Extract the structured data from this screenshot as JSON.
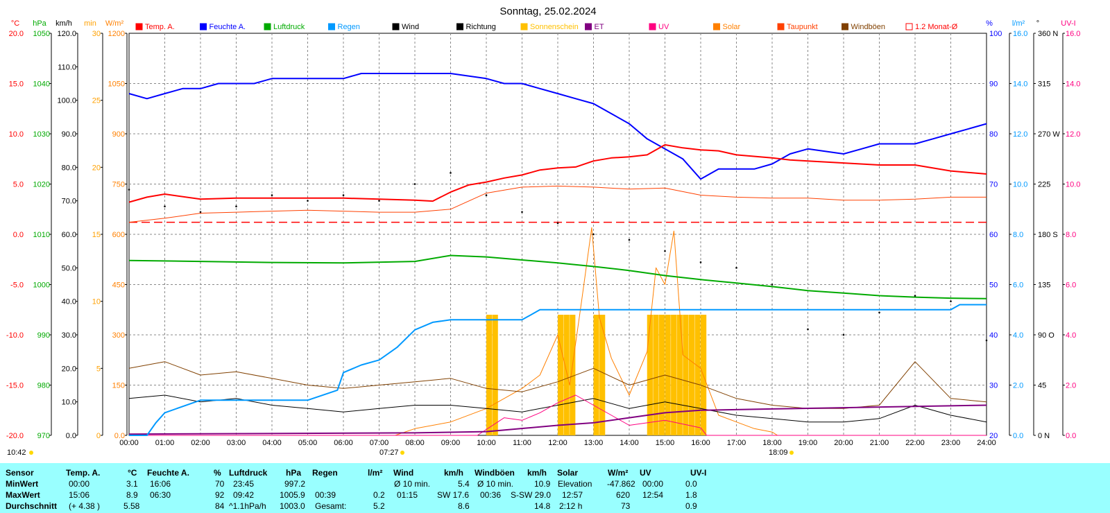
{
  "title": "Sonntag, 25.02.2024",
  "colors": {
    "temp": "#ff0000",
    "humidity": "#0000ff",
    "pressure": "#00aa00",
    "rain": "#0099ff",
    "wind": "#000000",
    "solar": "#ff8000",
    "dewpoint": "#ff4000",
    "gust": "#804000",
    "uv": "#ff0080",
    "et": "#800080",
    "sunshine": "#ffc000",
    "stats_bg": "#99ffff"
  },
  "legend": [
    {
      "label": "Temp. A.",
      "color": "#ff0000"
    },
    {
      "label": "Feuchte A.",
      "color": "#0000ff"
    },
    {
      "label": "Luftdruck",
      "color": "#00aa00"
    },
    {
      "label": "Regen",
      "color": "#0099ff"
    },
    {
      "label": "Wind",
      "color": "#000000"
    },
    {
      "label": "Richtung",
      "color": "#000000"
    },
    {
      "label": "Sonnenschein",
      "color": "#ffc000"
    },
    {
      "label": "ET",
      "color": "#800080"
    },
    {
      "label": "UV",
      "color": "#ff0080"
    },
    {
      "label": "Solar",
      "color": "#ff8000"
    },
    {
      "label": "Taupunkt",
      "color": "#ff4000"
    },
    {
      "label": "Windböen",
      "color": "#804000"
    },
    {
      "label": "1.2 Monat-Ø",
      "color": "#ff0000",
      "outline": true
    }
  ],
  "axes": {
    "temp": {
      "unit": "°C",
      "color": "#ff0000",
      "ticks": [
        "20.0",
        "15.0",
        "10.0",
        "5.0",
        "0.0",
        "-5.0",
        "-10.0",
        "-15.0",
        "-20.0"
      ]
    },
    "hpa": {
      "unit": "hPa",
      "color": "#00aa00",
      "ticks": [
        "1050",
        "1040",
        "1030",
        "1020",
        "1010",
        "1000",
        "990",
        "980",
        "970"
      ]
    },
    "kmh": {
      "unit": "km/h",
      "color": "#000000",
      "ticks": [
        "120.0",
        "110.0",
        "100.0",
        "90.0",
        "80.0",
        "70.0",
        "60.0",
        "50.0",
        "40.0",
        "30.0",
        "20.0",
        "10.0",
        "0.0"
      ]
    },
    "min": {
      "unit": "min",
      "color": "#ffa000",
      "ticks": [
        "30",
        "25",
        "20",
        "15",
        "10",
        "5",
        "0"
      ]
    },
    "wm2": {
      "unit": "W/m²",
      "color": "#ff8000",
      "ticks": [
        "1200",
        "1050",
        "900",
        "750",
        "600",
        "450",
        "300",
        "150",
        "0.0"
      ]
    },
    "pct": {
      "unit": "%",
      "color": "#0000ff",
      "ticks": [
        "100",
        "90",
        "80",
        "70",
        "60",
        "50",
        "40",
        "30",
        "20"
      ]
    },
    "lm2": {
      "unit": "l/m²",
      "color": "#0099ff",
      "ticks": [
        "16.0",
        "14.0",
        "12.0",
        "10.0",
        "8.0",
        "6.0",
        "4.0",
        "2.0",
        "0.0"
      ]
    },
    "deg": {
      "unit": "°",
      "color": "#000000",
      "ticks": [
        "360 N",
        "315",
        "270 W",
        "225",
        "180 S",
        "135",
        "90  O",
        "45",
        "0   N"
      ]
    },
    "uvi": {
      "unit": "UV-I",
      "color": "#ff0080",
      "ticks": [
        "16.0",
        "14.0",
        "12.0",
        "10.0",
        "8.0",
        "6.0",
        "4.0",
        "2.0",
        "0.0"
      ]
    },
    "x": {
      "ticks": [
        "00:00",
        "01:00",
        "02:00",
        "03:00",
        "04:00",
        "05:00",
        "06:00",
        "07:00",
        "08:00",
        "09:00",
        "10:00",
        "11:00",
        "12:00",
        "13:00",
        "14:00",
        "15:00",
        "16:00",
        "17:00",
        "18:00",
        "19:00",
        "20:00",
        "21:00",
        "22:00",
        "23:00",
        "24:00"
      ]
    }
  },
  "markers": {
    "sunrise": "07:27",
    "sunset": "18:09",
    "daylength": "10:42"
  },
  "chart_data": {
    "type": "line",
    "title": "Sonntag, 25.02.2024",
    "x_range": [
      "00:00",
      "24:00"
    ],
    "series": [
      {
        "name": "Temp. A.",
        "unit": "°C",
        "x": [
          "00:00",
          "00:30",
          "01:00",
          "02:00",
          "03:00",
          "04:00",
          "05:00",
          "06:00",
          "07:00",
          "08:00",
          "08:30",
          "09:00",
          "09:30",
          "10:00",
          "10:30",
          "11:00",
          "11:30",
          "12:00",
          "12:30",
          "13:00",
          "13:30",
          "14:00",
          "14:30",
          "15:00",
          "15:30",
          "16:00",
          "16:30",
          "17:00",
          "18:00",
          "18:30",
          "19:00",
          "20:00",
          "21:00",
          "22:00",
          "23:00",
          "24:00"
        ],
        "values": [
          3.2,
          3.7,
          4.0,
          3.5,
          3.6,
          3.6,
          3.6,
          3.6,
          3.5,
          3.4,
          3.3,
          4.2,
          4.9,
          5.2,
          5.6,
          5.9,
          6.4,
          6.6,
          6.7,
          7.3,
          7.6,
          7.7,
          7.9,
          8.9,
          8.6,
          8.4,
          8.3,
          7.9,
          7.6,
          7.4,
          7.3,
          7.1,
          6.9,
          6.9,
          6.3,
          6.0
        ]
      },
      {
        "name": "Feuchte A.",
        "unit": "%",
        "x": [
          "00:00",
          "00:30",
          "01:00",
          "01:30",
          "02:00",
          "02:30",
          "03:00",
          "03:30",
          "04:00",
          "05:00",
          "06:00",
          "06:30",
          "07:00",
          "08:00",
          "09:00",
          "10:00",
          "10:30",
          "11:00",
          "11:30",
          "12:00",
          "12:30",
          "13:00",
          "13:30",
          "14:00",
          "14:30",
          "15:00",
          "15:30",
          "16:00",
          "16:30",
          "17:00",
          "17:30",
          "18:00",
          "18:30",
          "19:00",
          "20:00",
          "20:30",
          "21:00",
          "21:30",
          "22:00",
          "22:30",
          "23:00",
          "23:30",
          "24:00"
        ],
        "values": [
          88,
          87,
          88,
          89,
          89,
          90,
          90,
          90,
          91,
          91,
          91,
          92,
          92,
          92,
          92,
          91,
          90,
          90,
          89,
          88,
          87,
          86,
          84,
          82,
          79,
          77,
          75,
          71,
          73,
          73,
          73,
          74,
          76,
          77,
          76,
          77,
          78,
          78,
          78,
          79,
          80,
          81,
          82
        ]
      },
      {
        "name": "Luftdruck",
        "unit": "hPa",
        "x": [
          "00:00",
          "02:00",
          "04:00",
          "06:00",
          "08:00",
          "09:00",
          "10:00",
          "11:00",
          "12:00",
          "13:00",
          "14:00",
          "15:00",
          "16:00",
          "17:00",
          "18:00",
          "19:00",
          "20:00",
          "21:00",
          "22:00",
          "23:00",
          "24:00"
        ],
        "values": [
          1004.8,
          1004.6,
          1004.4,
          1004.3,
          1004.6,
          1005.8,
          1005.5,
          1004.9,
          1004.3,
          1003.6,
          1002.8,
          1001.8,
          1001.0,
          1000.3,
          999.6,
          998.8,
          998.3,
          997.8,
          997.5,
          997.3,
          997.2
        ]
      },
      {
        "name": "Regen",
        "unit": "l/m²",
        "x": [
          "00:00",
          "00:30",
          "00:45",
          "01:00",
          "02:00",
          "03:00",
          "04:00",
          "05:00",
          "05:50",
          "06:00",
          "06:30",
          "07:00",
          "07:30",
          "08:00",
          "08:30",
          "09:00",
          "10:00",
          "11:00",
          "11:30",
          "12:00",
          "13:00",
          "14:00",
          "15:00",
          "16:00",
          "17:00",
          "18:00",
          "19:00",
          "20:00",
          "21:00",
          "22:00",
          "23:00",
          "23:15",
          "24:00"
        ],
        "values": [
          0.0,
          0.0,
          0.5,
          0.9,
          1.4,
          1.4,
          1.4,
          1.4,
          1.8,
          2.5,
          2.8,
          3.0,
          3.5,
          4.2,
          4.5,
          4.6,
          4.6,
          4.6,
          5.0,
          5.0,
          5.0,
          5.0,
          5.0,
          5.0,
          5.0,
          5.0,
          5.0,
          5.0,
          5.0,
          5.0,
          5.0,
          5.2,
          5.2
        ]
      },
      {
        "name": "Taupunkt",
        "unit": "°C",
        "x": [
          "00:00",
          "01:00",
          "02:00",
          "03:00",
          "04:00",
          "05:00",
          "06:00",
          "07:00",
          "08:00",
          "09:00",
          "10:00",
          "11:00",
          "12:00",
          "13:00",
          "14:00",
          "15:00",
          "16:00",
          "17:00",
          "18:00",
          "19:00",
          "20:00",
          "21:00",
          "22:00",
          "23:00",
          "24:00"
        ],
        "values": [
          1.2,
          1.6,
          2.1,
          2.2,
          2.3,
          2.4,
          2.3,
          2.2,
          2.2,
          2.5,
          4.1,
          4.7,
          4.8,
          4.7,
          4.5,
          4.6,
          3.9,
          3.7,
          3.6,
          3.6,
          3.4,
          3.4,
          3.5,
          3.7,
          3.7
        ]
      },
      {
        "name": "1.2 Monat-Ø",
        "unit": "°C",
        "x": [
          "00:00",
          "24:00"
        ],
        "values": [
          1.2,
          1.2
        ]
      },
      {
        "name": "Solar",
        "unit": "W/m²",
        "x": [
          "00:00",
          "07:27",
          "08:00",
          "09:00",
          "10:00",
          "11:00",
          "11:30",
          "12:00",
          "12:20",
          "12:40",
          "12:57",
          "13:10",
          "13:30",
          "14:00",
          "14:30",
          "14:45",
          "15:00",
          "15:15",
          "15:30",
          "16:00",
          "16:30",
          "17:00",
          "17:30",
          "18:00",
          "18:09",
          "24:00"
        ],
        "values": [
          0,
          0,
          20,
          40,
          80,
          140,
          180,
          300,
          150,
          400,
          620,
          350,
          230,
          120,
          250,
          500,
          450,
          610,
          240,
          200,
          60,
          40,
          20,
          10,
          0,
          0
        ]
      },
      {
        "name": "Wind",
        "unit": "km/h",
        "x": [
          "00:00",
          "01:00",
          "02:00",
          "03:00",
          "04:00",
          "05:00",
          "06:00",
          "07:00",
          "08:00",
          "09:00",
          "10:00",
          "11:00",
          "12:00",
          "13:00",
          "14:00",
          "15:00",
          "16:00",
          "17:00",
          "18:00",
          "19:00",
          "20:00",
          "21:00",
          "22:00",
          "23:00",
          "24:00"
        ],
        "values": [
          11,
          12,
          10,
          11,
          9,
          8,
          7,
          8,
          9,
          9,
          8,
          7,
          9,
          11,
          8,
          10,
          8,
          6,
          5,
          4,
          4,
          5,
          9,
          6,
          4
        ]
      },
      {
        "name": "Windböen",
        "unit": "km/h",
        "x": [
          "00:00",
          "01:00",
          "02:00",
          "03:00",
          "04:00",
          "05:00",
          "06:00",
          "07:00",
          "08:00",
          "09:00",
          "10:00",
          "11:00",
          "12:00",
          "13:00",
          "14:00",
          "15:00",
          "16:00",
          "17:00",
          "18:00",
          "19:00",
          "20:00",
          "21:00",
          "22:00",
          "23:00",
          "24:00"
        ],
        "values": [
          20,
          22,
          18,
          19,
          17,
          15,
          14,
          15,
          16,
          17,
          14,
          13,
          16,
          20,
          15,
          18,
          15,
          11,
          9,
          8,
          8,
          9,
          22,
          11,
          10
        ]
      },
      {
        "name": "UV",
        "unit": "UV-I",
        "x": [
          "00:00",
          "09:45",
          "10:30",
          "11:00",
          "11:30",
          "12:00",
          "12:30",
          "13:00",
          "13:30",
          "14:00",
          "15:00",
          "16:00",
          "16:10",
          "24:00"
        ],
        "values": [
          0,
          0,
          0.7,
          0.6,
          0.9,
          1.3,
          1.6,
          1.2,
          0.8,
          0.4,
          0.6,
          0.3,
          0,
          0
        ]
      },
      {
        "name": "ET",
        "unit": "l/m²",
        "x": [
          "00:00",
          "08:00",
          "10:00",
          "12:00",
          "13:00",
          "14:00",
          "15:00",
          "16:00",
          "18:00",
          "20:00",
          "22:00",
          "24:00"
        ],
        "values": [
          0.05,
          0.1,
          0.15,
          0.4,
          0.5,
          0.7,
          0.9,
          1.0,
          1.05,
          1.1,
          1.15,
          1.2
        ]
      },
      {
        "name": "Richtung",
        "unit": "°",
        "x": [
          "00:00",
          "01:00",
          "02:00",
          "03:00",
          "04:00",
          "05:00",
          "06:00",
          "07:00",
          "08:00",
          "09:00",
          "10:00",
          "11:00",
          "12:00",
          "13:00",
          "14:00",
          "15:00",
          "16:00",
          "17:00",
          "18:00",
          "19:00",
          "20:00",
          "21:00",
          "22:00",
          "23:00",
          "24:00"
        ],
        "values": [
          220,
          205,
          200,
          205,
          215,
          210,
          215,
          210,
          225,
          235,
          215,
          200,
          190,
          180,
          175,
          165,
          155,
          150,
          135,
          95,
          90,
          110,
          125,
          120,
          85
        ]
      },
      {
        "name": "Sonnenschein",
        "unit": "min",
        "x": [
          "10:00",
          "10:10",
          "12:00",
          "12:10",
          "12:20",
          "13:00",
          "13:10",
          "14:30",
          "14:40",
          "14:50",
          "15:00",
          "15:10",
          "15:20",
          "15:30",
          "15:40",
          "15:50",
          "16:00"
        ],
        "values": [
          9,
          9,
          9,
          9,
          9,
          9,
          9,
          9,
          9,
          9,
          9,
          9,
          9,
          9,
          9,
          9,
          9
        ]
      }
    ]
  },
  "stats": {
    "headers": [
      "Sensor",
      "Temp. A.",
      "°C",
      "Feuchte A.",
      "%",
      "Luftdruck",
      "hPa",
      "Regen",
      "l/m²",
      "Wind",
      "km/h",
      "Windböen",
      "km/h",
      "Solar",
      "W/m²",
      "UV",
      "UV-I"
    ],
    "rows": [
      {
        "label": "MinWert",
        "temp_t": "00:00",
        "temp_v": "3.1",
        "hum_t": "16:06",
        "hum_v": "70",
        "hpa_t": "23:45",
        "hpa_v": "997.2",
        "rain_t": "",
        "rain_v": "",
        "wind_t": "Ø 10 min.",
        "wind_v": "5.4",
        "gust_t": "Ø 10 min.",
        "gust_v": "10.9",
        "sol_t": "Elevation",
        "sol_v": "-47.862",
        "uv_t": "00:00",
        "uv_v": "0.0"
      },
      {
        "label": "MaxWert",
        "temp_t": "15:06",
        "temp_v": "8.9",
        "hum_t": "06:30",
        "hum_v": "92",
        "hpa_t": "09:42",
        "hpa_v": "1005.9",
        "rain_t": "00:39",
        "rain_v": "0.2",
        "wind_t": "01:15",
        "wind_v": "SW 17.6",
        "gust_t": "00:36",
        "gust_v": "S-SW 29.0",
        "sol_t": "12:57",
        "sol_v": "620",
        "uv_t": "12:54",
        "uv_v": "1.8"
      },
      {
        "label": "Durchschnitt",
        "temp_t": "(+ 4.38 )",
        "temp_v": "5.58",
        "hum_t": "",
        "hum_v": "84",
        "hpa_t": "^1.1hPa/h",
        "hpa_v": "1003.0",
        "rain_t": "Gesamt:",
        "rain_v": "5.2",
        "wind_t": "",
        "wind_v": "8.6",
        "gust_t": "",
        "gust_v": "14.8",
        "sol_t": "2:12 h",
        "sol_v": "73",
        "uv_t": "",
        "uv_v": "0.9"
      }
    ]
  }
}
